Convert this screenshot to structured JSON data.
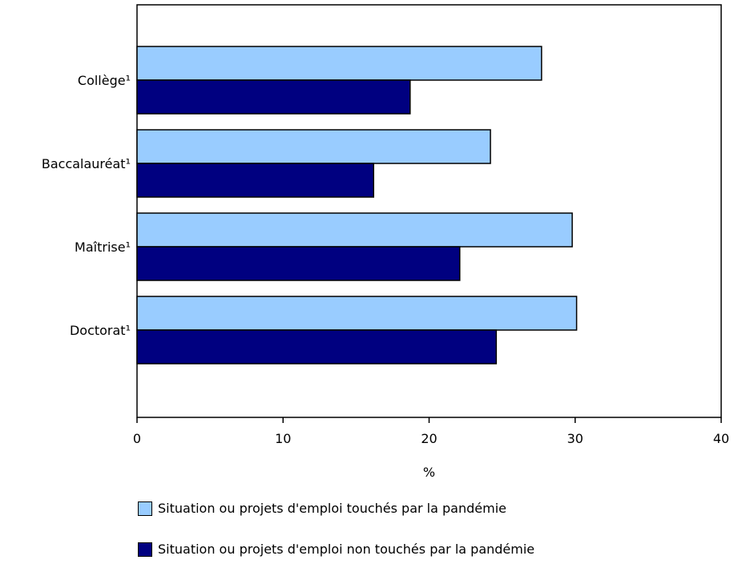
{
  "chart_data": {
    "type": "bar",
    "orientation": "horizontal",
    "categories": [
      "Collège¹",
      "Baccalauréat¹",
      "Maîtrise¹",
      "Doctorat¹"
    ],
    "series": [
      {
        "name": "Situation ou projets d'emploi touchés par la pandémie",
        "color": "#99ccff",
        "values": [
          27.7,
          24.2,
          29.8,
          30.1
        ]
      },
      {
        "name": "Situation ou projets d'emploi non touchés par la pandémie",
        "color": "#000080",
        "values": [
          18.7,
          16.2,
          22.1,
          24.6
        ]
      }
    ],
    "xlabel": "%",
    "ylabel": "",
    "xlim": [
      0,
      40
    ],
    "xticks": [
      "0",
      "10",
      "20",
      "30",
      "40"
    ],
    "grid": false,
    "legend_position": "bottom"
  }
}
